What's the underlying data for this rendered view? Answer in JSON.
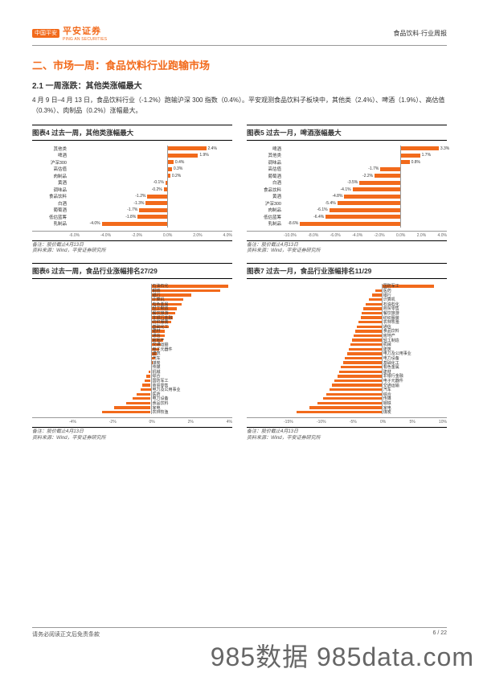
{
  "header": {
    "logo_badge": "中国平安",
    "logo_cn": "平安证券",
    "logo_en": "PING AN SECURITIES",
    "right_text": "食品饮料·行业周报"
  },
  "section_title": "二、市场一周：食品饮料行业跑输市场",
  "sub_title": "2.1 一周涨跌：其他类涨幅最大",
  "body_text": "4 月 9 日–4 月 13 日，食品饮料行业（-1.2%）跑输沪深 300 指数（0.4%）。平安观测食品饮料子板块中，其他类（2.4%）、啤酒（1.9%）、高估值（0.3%）、肉制品（0.2%）涨幅最大。",
  "chart4": {
    "title": "图表4   过去一周，其他类涨幅最大",
    "xmin": -6.0,
    "xmax": 4.0,
    "ticks": [
      "-6.0%",
      "-4.0%",
      "-2.0%",
      "0.0%",
      "2.0%",
      "4.0%"
    ],
    "rows": [
      {
        "label": "其他类",
        "v": 2.4,
        "vl": "2.4%"
      },
      {
        "label": "啤酒",
        "v": 1.9,
        "vl": "1.9%"
      },
      {
        "label": "沪深300",
        "v": 0.4,
        "vl": "0.4%"
      },
      {
        "label": "高估值",
        "v": 0.3,
        "vl": "0.3%"
      },
      {
        "label": "肉制品",
        "v": 0.2,
        "vl": "0.2%"
      },
      {
        "label": "黄酒",
        "v": -0.1,
        "vl": "-0.1%"
      },
      {
        "label": "调味品",
        "v": -0.2,
        "vl": "-0.2%"
      },
      {
        "label": "食品饮料",
        "v": -1.2,
        "vl": "-1.2%"
      },
      {
        "label": "白酒",
        "v": -1.3,
        "vl": "-1.3%"
      },
      {
        "label": "葡萄酒",
        "v": -1.7,
        "vl": "-1.7%"
      },
      {
        "label": "低估蓝筹",
        "v": -1.8,
        "vl": "-1.8%"
      },
      {
        "label": "乳制品",
        "v": -4.0,
        "vl": "-4.0%"
      }
    ],
    "note1": "备注：股价截止4月13日",
    "note2": "资料来源：Wind，平安证券研究所"
  },
  "chart5": {
    "title": "图表5   过去一月，啤酒涨幅最大",
    "xmin": -10.0,
    "xmax": 4.0,
    "ticks": [
      "-10.0%",
      "-8.0%",
      "-6.0%",
      "-4.0%",
      "-2.0%",
      "0.0%",
      "2.0%",
      "4.0%"
    ],
    "rows": [
      {
        "label": "啤酒",
        "v": 3.3,
        "vl": "3.3%"
      },
      {
        "label": "其他类",
        "v": 1.7,
        "vl": "1.7%"
      },
      {
        "label": "调味品",
        "v": 0.8,
        "vl": "0.8%"
      },
      {
        "label": "高估值",
        "v": -1.7,
        "vl": "-1.7%"
      },
      {
        "label": "葡萄酒",
        "v": -2.2,
        "vl": "-2.2%"
      },
      {
        "label": "白酒",
        "v": -3.5,
        "vl": "-3.5%"
      },
      {
        "label": "食品饮料",
        "v": -4.1,
        "vl": "-4.1%"
      },
      {
        "label": "黄酒",
        "v": -4.8,
        "vl": "-4.8%"
      },
      {
        "label": "沪深300",
        "v": -5.4,
        "vl": "-5.4%"
      },
      {
        "label": "肉制品",
        "v": -6.1,
        "vl": "-6.1%"
      },
      {
        "label": "低估蓝筹",
        "v": -6.4,
        "vl": "-6.4%"
      },
      {
        "label": "乳制品",
        "v": -8.6,
        "vl": "-8.6%",
        "vlAttached": true
      }
    ],
    "note1": "备注：股价截止4月13日",
    "note2": "资料来源：Wind，平安证券研究所"
  },
  "chart6": {
    "title": "图表6   过去一周，食品行业涨幅排名27/29",
    "xmin": -4,
    "xmax": 4,
    "ticks": [
      "-4%",
      "-2%",
      "0%",
      "2%",
      "4%"
    ],
    "rows": [
      {
        "label": "石油石化",
        "v": 3.8
      },
      {
        "label": "钢铁",
        "v": 3.4
      },
      {
        "label": "银行",
        "v": 2.0
      },
      {
        "label": "计算机",
        "v": 1.6
      },
      {
        "label": "有色金属",
        "v": 1.5
      },
      {
        "label": "轻工制造",
        "v": 1.3
      },
      {
        "label": "餐饮旅游",
        "v": 1.2
      },
      {
        "label": "非银行金融",
        "v": 1.1
      },
      {
        "label": "纺织服装",
        "v": 1.0
      },
      {
        "label": "基础化工",
        "v": 0.9
      },
      {
        "label": "建材",
        "v": 0.7
      },
      {
        "label": "通信",
        "v": 0.7
      },
      {
        "label": "房地产",
        "v": 0.6
      },
      {
        "label": "交通运输",
        "v": 0.5
      },
      {
        "label": "电子元器件",
        "v": 0.4
      },
      {
        "label": "建筑",
        "v": 0.3
      },
      {
        "label": "汽车",
        "v": 0.2
      },
      {
        "label": "煤炭",
        "v": 0.1
      },
      {
        "label": "传媒",
        "v": 0.0
      },
      {
        "label": "机械",
        "v": -0.1
      },
      {
        "label": "综合",
        "v": -0.2
      },
      {
        "label": "国防军工",
        "v": -0.3
      },
      {
        "label": "商贸零售",
        "v": -0.4
      },
      {
        "label": "电力及公用事业",
        "v": -0.5
      },
      {
        "label": "医药",
        "v": -0.7
      },
      {
        "label": "电力设备",
        "v": -0.9
      },
      {
        "label": "食品饮料",
        "v": -1.2
      },
      {
        "label": "家电",
        "v": -1.8
      },
      {
        "label": "农林牧渔",
        "v": -2.4
      }
    ],
    "note1": "备注：股价截止4月13日",
    "note2": "资料来源：Wind，平安证券研究所"
  },
  "chart7": {
    "title": "图表7   过去一月，食品行业涨幅排名11/29",
    "xmin": -15,
    "xmax": 10,
    "ticks": [
      "-15%",
      "-10%",
      "-5%",
      "0%",
      "5%",
      "10%"
    ],
    "rows": [
      {
        "label": "国防军工",
        "v": 8.0
      },
      {
        "label": "医药",
        "v": -1.0
      },
      {
        "label": "银行",
        "v": -1.5
      },
      {
        "label": "计算机",
        "v": -2.0
      },
      {
        "label": "石油石化",
        "v": -2.5
      },
      {
        "label": "商贸零售",
        "v": -2.8
      },
      {
        "label": "餐饮旅游",
        "v": -3.0
      },
      {
        "label": "纺织服装",
        "v": -3.2
      },
      {
        "label": "农林牧渔",
        "v": -3.5
      },
      {
        "label": "通信",
        "v": -3.8
      },
      {
        "label": "食品饮料",
        "v": -4.1
      },
      {
        "label": "房地产",
        "v": -4.3
      },
      {
        "label": "轻工制造",
        "v": -4.5
      },
      {
        "label": "机械",
        "v": -4.8
      },
      {
        "label": "建筑",
        "v": -5.0
      },
      {
        "label": "电力及公用事业",
        "v": -5.3
      },
      {
        "label": "电力设备",
        "v": -5.6
      },
      {
        "label": "基础化工",
        "v": -5.9
      },
      {
        "label": "有色金属",
        "v": -6.2
      },
      {
        "label": "建材",
        "v": -6.5
      },
      {
        "label": "非银行金融",
        "v": -6.8
      },
      {
        "label": "电子元器件",
        "v": -7.2
      },
      {
        "label": "交通运输",
        "v": -7.6
      },
      {
        "label": "汽车",
        "v": -8.0
      },
      {
        "label": "综合",
        "v": -8.5
      },
      {
        "label": "传媒",
        "v": -9.0
      },
      {
        "label": "钢铁",
        "v": -9.8
      },
      {
        "label": "家电",
        "v": -11.0
      },
      {
        "label": "煤炭",
        "v": -13.0
      }
    ],
    "note1": "备注：股价截止4月13日",
    "note2": "资料来源：Wind，平安证券研究所"
  },
  "footer": {
    "left": "请务必阅读正文后免责条款",
    "right": "6 / 22"
  },
  "watermark": "985数据 985data.com"
}
